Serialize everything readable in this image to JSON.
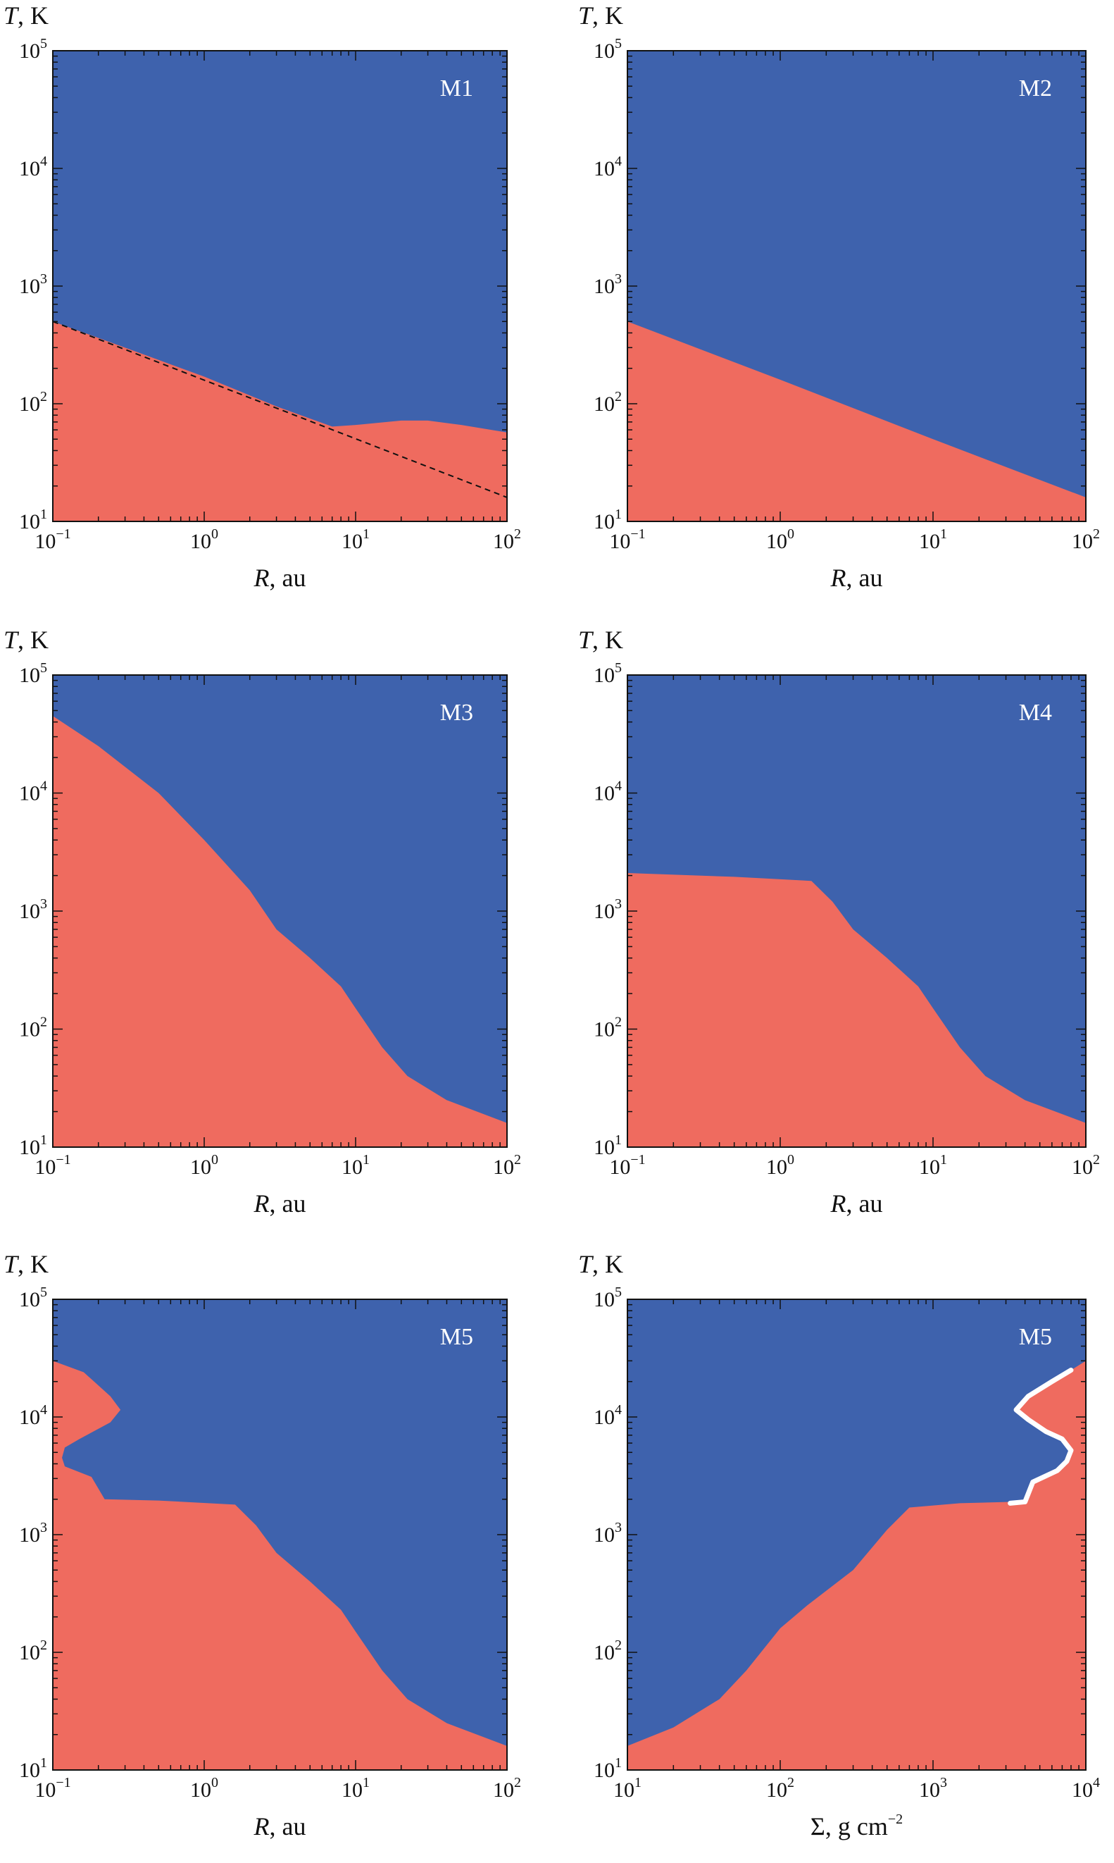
{
  "colors": {
    "stable": "#3e62ad",
    "unstable": "#ef6b5f",
    "frame": "#111111",
    "boundary_line": "#ffffff",
    "dashed": "#111111"
  },
  "chart_data": [
    {
      "type": "area",
      "title": "M1",
      "xlabel_var": "R",
      "xlabel_unit": ", au",
      "ylabel_var": "T",
      "ylabel_unit": ", K",
      "xscale": "log",
      "yscale": "log",
      "xlim": [
        0.1,
        100
      ],
      "ylim": [
        10,
        100000
      ],
      "x_ticks": [
        {
          "base": "10",
          "exp": "−1",
          "v": 0.1
        },
        {
          "base": "10",
          "exp": "0",
          "v": 1
        },
        {
          "base": "10",
          "exp": "1",
          "v": 10
        },
        {
          "base": "10",
          "exp": "2",
          "v": 100
        }
      ],
      "y_ticks": [
        {
          "base": "10",
          "exp": "1",
          "v": 10
        },
        {
          "base": "10",
          "exp": "2",
          "v": 100
        },
        {
          "base": "10",
          "exp": "3",
          "v": 1000
        },
        {
          "base": "10",
          "exp": "4",
          "v": 10000
        },
        {
          "base": "10",
          "exp": "5",
          "v": 100000
        }
      ],
      "legend_position": "top-right",
      "region_below": "unstable",
      "region_above": "stable",
      "boundary": [
        [
          0.1,
          500
        ],
        [
          0.3,
          300
        ],
        [
          1,
          170
        ],
        [
          3,
          95
        ],
        [
          7,
          64
        ],
        [
          10,
          66
        ],
        [
          20,
          72
        ],
        [
          30,
          72
        ],
        [
          50,
          66
        ],
        [
          100,
          57
        ]
      ],
      "dashed_line": [
        [
          0.1,
          500
        ],
        [
          100,
          16
        ]
      ]
    },
    {
      "type": "area",
      "title": "M2",
      "xlabel_var": "R",
      "xlabel_unit": ", au",
      "ylabel_var": "T",
      "ylabel_unit": ", K",
      "xscale": "log",
      "yscale": "log",
      "xlim": [
        0.1,
        100
      ],
      "ylim": [
        10,
        100000
      ],
      "x_ticks": [
        {
          "base": "10",
          "exp": "−1",
          "v": 0.1
        },
        {
          "base": "10",
          "exp": "0",
          "v": 1
        },
        {
          "base": "10",
          "exp": "1",
          "v": 10
        },
        {
          "base": "10",
          "exp": "2",
          "v": 100
        }
      ],
      "y_ticks": [
        {
          "base": "10",
          "exp": "1",
          "v": 10
        },
        {
          "base": "10",
          "exp": "2",
          "v": 100
        },
        {
          "base": "10",
          "exp": "3",
          "v": 1000
        },
        {
          "base": "10",
          "exp": "4",
          "v": 10000
        },
        {
          "base": "10",
          "exp": "5",
          "v": 100000
        }
      ],
      "legend_position": "top-right",
      "region_below": "unstable",
      "region_above": "stable",
      "boundary": [
        [
          0.1,
          500
        ],
        [
          1,
          160
        ],
        [
          10,
          50
        ],
        [
          100,
          16
        ]
      ]
    },
    {
      "type": "area",
      "title": "M3",
      "xlabel_var": "R",
      "xlabel_unit": ", au",
      "ylabel_var": "T",
      "ylabel_unit": ", K",
      "xscale": "log",
      "yscale": "log",
      "xlim": [
        0.1,
        100
      ],
      "ylim": [
        10,
        100000
      ],
      "x_ticks": [
        {
          "base": "10",
          "exp": "−1",
          "v": 0.1
        },
        {
          "base": "10",
          "exp": "0",
          "v": 1
        },
        {
          "base": "10",
          "exp": "1",
          "v": 10
        },
        {
          "base": "10",
          "exp": "2",
          "v": 100
        }
      ],
      "y_ticks": [
        {
          "base": "10",
          "exp": "1",
          "v": 10
        },
        {
          "base": "10",
          "exp": "2",
          "v": 100
        },
        {
          "base": "10",
          "exp": "3",
          "v": 1000
        },
        {
          "base": "10",
          "exp": "4",
          "v": 10000
        },
        {
          "base": "10",
          "exp": "5",
          "v": 100000
        }
      ],
      "legend_position": "top-right",
      "region_below": "unstable",
      "region_above": "stable",
      "boundary": [
        [
          0.1,
          45000
        ],
        [
          0.2,
          25000
        ],
        [
          0.5,
          10000
        ],
        [
          1,
          4000
        ],
        [
          2,
          1500
        ],
        [
          3,
          700
        ],
        [
          5,
          400
        ],
        [
          8,
          230
        ],
        [
          10,
          150
        ],
        [
          15,
          70
        ],
        [
          22,
          40
        ],
        [
          40,
          25
        ],
        [
          100,
          16
        ]
      ]
    },
    {
      "type": "area",
      "title": "M4",
      "xlabel_var": "R",
      "xlabel_unit": ", au",
      "ylabel_var": "T",
      "ylabel_unit": ", K",
      "xscale": "log",
      "yscale": "log",
      "xlim": [
        0.1,
        100
      ],
      "ylim": [
        10,
        100000
      ],
      "x_ticks": [
        {
          "base": "10",
          "exp": "−1",
          "v": 0.1
        },
        {
          "base": "10",
          "exp": "0",
          "v": 1
        },
        {
          "base": "10",
          "exp": "1",
          "v": 10
        },
        {
          "base": "10",
          "exp": "2",
          "v": 100
        }
      ],
      "y_ticks": [
        {
          "base": "10",
          "exp": "1",
          "v": 10
        },
        {
          "base": "10",
          "exp": "2",
          "v": 100
        },
        {
          "base": "10",
          "exp": "3",
          "v": 1000
        },
        {
          "base": "10",
          "exp": "4",
          "v": 10000
        },
        {
          "base": "10",
          "exp": "5",
          "v": 100000
        }
      ],
      "legend_position": "top-right",
      "region_below": "unstable",
      "region_above": "stable",
      "boundary": [
        [
          0.1,
          2100
        ],
        [
          0.5,
          1950
        ],
        [
          1.6,
          1800
        ],
        [
          2.2,
          1200
        ],
        [
          3,
          700
        ],
        [
          5,
          400
        ],
        [
          8,
          230
        ],
        [
          10,
          150
        ],
        [
          15,
          70
        ],
        [
          22,
          40
        ],
        [
          40,
          25
        ],
        [
          100,
          16
        ]
      ]
    },
    {
      "type": "area",
      "title": "M5",
      "xlabel_var": "R",
      "xlabel_unit": ", au",
      "ylabel_var": "T",
      "ylabel_unit": ", K",
      "xscale": "log",
      "yscale": "log",
      "xlim": [
        0.1,
        100
      ],
      "ylim": [
        10,
        100000
      ],
      "x_ticks": [
        {
          "base": "10",
          "exp": "−1",
          "v": 0.1
        },
        {
          "base": "10",
          "exp": "0",
          "v": 1
        },
        {
          "base": "10",
          "exp": "1",
          "v": 10
        },
        {
          "base": "10",
          "exp": "2",
          "v": 100
        }
      ],
      "y_ticks": [
        {
          "base": "10",
          "exp": "1",
          "v": 10
        },
        {
          "base": "10",
          "exp": "2",
          "v": 100
        },
        {
          "base": "10",
          "exp": "3",
          "v": 1000
        },
        {
          "base": "10",
          "exp": "4",
          "v": 10000
        },
        {
          "base": "10",
          "exp": "5",
          "v": 100000
        }
      ],
      "legend_position": "top-right",
      "region_below": "unstable",
      "region_above": "stable",
      "boundary": [
        [
          0.1,
          30000
        ],
        [
          0.16,
          24000
        ],
        [
          0.24,
          15000
        ],
        [
          0.28,
          11500
        ],
        [
          0.24,
          9000
        ],
        [
          0.15,
          6500
        ],
        [
          0.12,
          5500
        ],
        [
          0.115,
          4500
        ],
        [
          0.12,
          3800
        ],
        [
          0.18,
          3100
        ],
        [
          0.22,
          2000
        ],
        [
          0.5,
          1950
        ],
        [
          1.6,
          1800
        ],
        [
          2.2,
          1200
        ],
        [
          3,
          700
        ],
        [
          5,
          400
        ],
        [
          8,
          230
        ],
        [
          10,
          150
        ],
        [
          15,
          70
        ],
        [
          22,
          40
        ],
        [
          40,
          25
        ],
        [
          100,
          16
        ]
      ]
    },
    {
      "type": "area",
      "title": "M5",
      "xlabel_var": "Σ",
      "xlabel_unit": ", g cm",
      "xlabel_exp": "−2",
      "ylabel_var": "T",
      "ylabel_unit": ", K",
      "xscale": "log",
      "yscale": "log",
      "xlim": [
        10,
        10000
      ],
      "ylim": [
        10,
        100000
      ],
      "x_ticks": [
        {
          "base": "10",
          "exp": "1",
          "v": 10
        },
        {
          "base": "10",
          "exp": "2",
          "v": 100
        },
        {
          "base": "10",
          "exp": "3",
          "v": 1000
        },
        {
          "base": "10",
          "exp": "4",
          "v": 10000
        }
      ],
      "y_ticks": [
        {
          "base": "10",
          "exp": "1",
          "v": 10
        },
        {
          "base": "10",
          "exp": "2",
          "v": 100
        },
        {
          "base": "10",
          "exp": "3",
          "v": 1000
        },
        {
          "base": "10",
          "exp": "4",
          "v": 10000
        },
        {
          "base": "10",
          "exp": "5",
          "v": 100000
        }
      ],
      "legend_position": "top-right",
      "region_below": "unstable",
      "region_above": "stable",
      "boundary": [
        [
          10,
          16
        ],
        [
          20,
          23
        ],
        [
          40,
          40
        ],
        [
          60,
          70
        ],
        [
          100,
          160
        ],
        [
          150,
          250
        ],
        [
          300,
          500
        ],
        [
          500,
          1100
        ],
        [
          700,
          1700
        ],
        [
          1500,
          1850
        ],
        [
          3200,
          1900
        ]
      ],
      "white_line": [
        [
          3200,
          1850
        ],
        [
          4000,
          1900
        ],
        [
          4500,
          2800
        ],
        [
          6500,
          3500
        ],
        [
          7500,
          4200
        ],
        [
          8000,
          5200
        ],
        [
          7000,
          6500
        ],
        [
          5500,
          7500
        ],
        [
          4200,
          9500
        ],
        [
          3500,
          11500
        ],
        [
          4200,
          15000
        ],
        [
          6000,
          20000
        ],
        [
          8000,
          25000
        ]
      ],
      "upper_edge": [
        [
          8000,
          25000
        ],
        [
          10000,
          30000
        ]
      ]
    }
  ]
}
